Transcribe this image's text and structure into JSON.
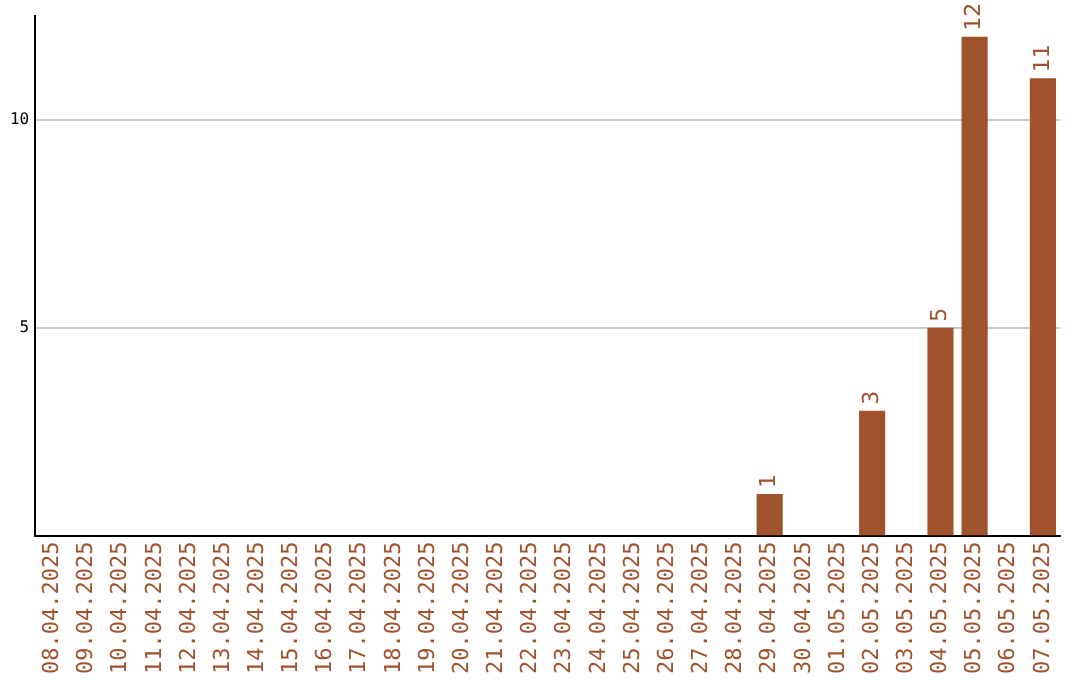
{
  "chart_data": {
    "type": "bar",
    "categories": [
      "08.04.2025",
      "09.04.2025",
      "10.04.2025",
      "11.04.2025",
      "12.04.2025",
      "13.04.2025",
      "14.04.2025",
      "15.04.2025",
      "16.04.2025",
      "17.04.2025",
      "18.04.2025",
      "19.04.2025",
      "20.04.2025",
      "21.04.2025",
      "22.04.2025",
      "23.04.2025",
      "24.04.2025",
      "25.04.2025",
      "26.04.2025",
      "27.04.2025",
      "28.04.2025",
      "29.04.2025",
      "30.04.2025",
      "01.05.2025",
      "02.05.2025",
      "03.05.2025",
      "04.05.2025",
      "05.05.2025",
      "06.05.2025",
      "07.05.2025"
    ],
    "values": [
      0,
      0,
      0,
      0,
      0,
      0,
      0,
      0,
      0,
      0,
      0,
      0,
      0,
      0,
      0,
      0,
      0,
      0,
      0,
      0,
      0,
      1,
      0,
      0,
      3,
      0,
      5,
      12,
      0,
      11
    ],
    "value_labels": [
      null,
      null,
      null,
      null,
      null,
      null,
      null,
      null,
      null,
      null,
      null,
      null,
      null,
      null,
      null,
      null,
      null,
      null,
      null,
      null,
      null,
      "1",
      null,
      null,
      "3",
      null,
      "5",
      "12",
      null,
      "11"
    ],
    "color": "#a0522d",
    "ylim": [
      0,
      12.5
    ],
    "yticks": [
      5,
      10
    ],
    "grid": "y"
  }
}
